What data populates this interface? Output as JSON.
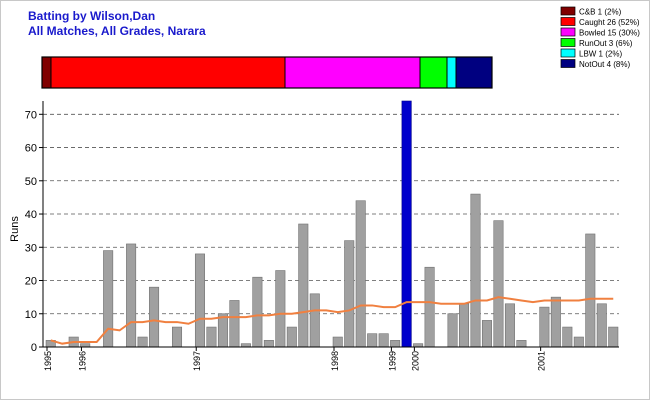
{
  "chart_data": {
    "type": "bar",
    "title": "Batting by Wilson,Dan",
    "subtitle": "All Matches, All Grades, Narara",
    "ylabel": "Runs",
    "xlabel": "",
    "ylim": [
      0,
      74
    ],
    "yticks": [
      0,
      10,
      20,
      30,
      40,
      50,
      60,
      70
    ],
    "grid": true,
    "legend_position": "top-right",
    "series": [
      {
        "name": "Runs",
        "values": [
          2,
          0,
          3,
          1,
          0,
          29,
          0,
          31,
          3,
          18,
          0,
          6,
          0,
          28,
          6,
          10,
          14,
          1,
          21,
          2,
          23,
          6,
          37,
          16,
          0,
          3,
          32,
          44,
          4,
          4,
          2,
          74,
          1,
          24,
          0,
          10,
          13,
          46,
          8,
          38,
          13,
          2,
          0,
          12,
          15,
          6,
          3,
          34,
          13,
          6
        ],
        "highlight_index": 31,
        "highlight_color": "#0000cc",
        "bar_color": "#a0a0a0"
      },
      {
        "name": "Average",
        "type": "line",
        "color": "#f08040",
        "values": [
          2,
          1,
          1.5,
          1.5,
          1.5,
          5.5,
          5,
          7.5,
          7.5,
          8,
          7.5,
          7.5,
          7,
          8.5,
          8.5,
          9,
          9,
          9,
          9.5,
          9.5,
          10,
          10,
          10.5,
          11,
          11,
          10.5,
          11,
          12.5,
          12.5,
          12,
          12,
          13.5,
          13.5,
          13.5,
          13,
          13,
          13,
          14,
          14,
          15,
          14.5,
          14,
          13.5,
          14,
          14,
          14,
          14,
          14.5,
          14.5,
          14.5
        ]
      }
    ],
    "year_ticks": [
      {
        "label": "1995",
        "index": 0
      },
      {
        "label": "1996",
        "index": 3
      },
      {
        "label": "1997",
        "index": 13
      },
      {
        "label": "1998",
        "index": 25
      },
      {
        "label": "1999",
        "index": 30
      },
      {
        "label": "2000",
        "index": 32
      },
      {
        "label": "2001",
        "index": 43
      }
    ],
    "dismissals": [
      {
        "label": "C&B 1 (2%)",
        "count": 1,
        "color": "#800000"
      },
      {
        "label": "Caught 26 (52%)",
        "count": 26,
        "color": "#ff0000"
      },
      {
        "label": "Bowled 15 (30%)",
        "count": 15,
        "color": "#ff00ff"
      },
      {
        "label": "RunOut 3 (6%)",
        "count": 3,
        "color": "#00ff00"
      },
      {
        "label": "LBW 1 (2%)",
        "count": 1,
        "color": "#00ffff"
      },
      {
        "label": "NotOut 4 (8%)",
        "count": 4,
        "color": "#000080"
      }
    ]
  }
}
